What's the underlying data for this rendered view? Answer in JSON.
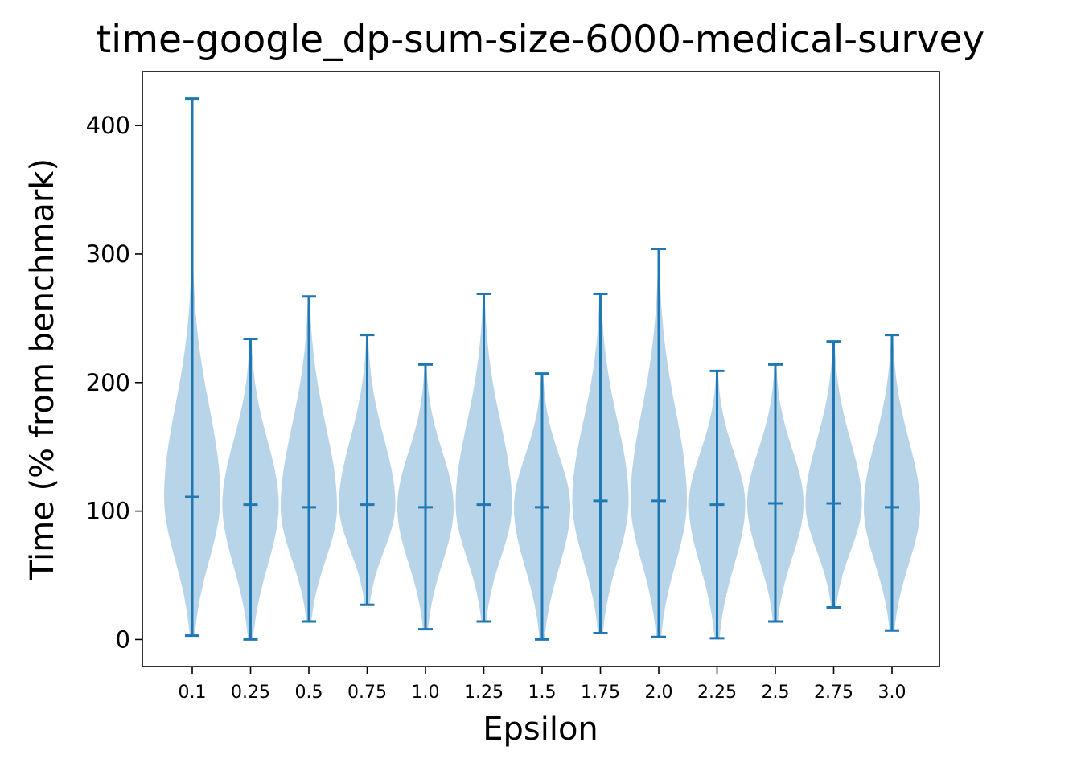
{
  "chart_data": {
    "type": "violin",
    "title": "time-google_dp-sum-size-6000-medical-survey",
    "xlabel": "Epsilon",
    "ylabel": "Time (% from benchmark)",
    "categories": [
      "0.1",
      "0.25",
      "0.5",
      "0.75",
      "1.0",
      "1.25",
      "1.5",
      "1.75",
      "2.0",
      "2.25",
      "2.5",
      "2.75",
      "3.0"
    ],
    "yticks": [
      "0",
      "100",
      "200",
      "300",
      "400"
    ],
    "ylim": [
      -21,
      442
    ],
    "min": [
      3,
      0,
      14,
      27,
      8,
      14,
      0,
      5,
      2,
      1,
      14,
      25,
      7
    ],
    "max": [
      421,
      234,
      267,
      237,
      214,
      269,
      207,
      269,
      304,
      209,
      214,
      232,
      237
    ],
    "mean": [
      111,
      105,
      103,
      105,
      103,
      105,
      103,
      108,
      108,
      105,
      106,
      106,
      103
    ],
    "body_color": "#b8d4e8",
    "line_color": "#1f77b4"
  }
}
